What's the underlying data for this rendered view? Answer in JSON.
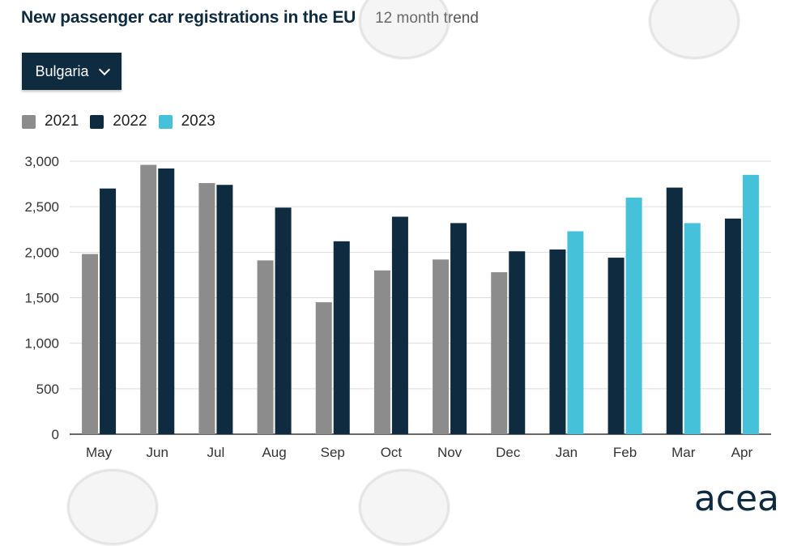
{
  "header": {
    "title": "New passenger car registrations in the EU",
    "subtitle": "12 month trend"
  },
  "selector": {
    "value": "Bulgaria",
    "icon": "chevron-down-icon"
  },
  "logo": "acea",
  "colors": {
    "2021": "#8c8c8c",
    "2022": "#0f2b40",
    "2023": "#45c2da",
    "grid": "#dddddd",
    "axis": "#333333"
  },
  "chart_data": {
    "type": "bar",
    "categories": [
      "May",
      "Jun",
      "Jul",
      "Aug",
      "Sep",
      "Oct",
      "Nov",
      "Dec",
      "Jan",
      "Feb",
      "Mar",
      "Apr"
    ],
    "series": [
      {
        "name": "2021",
        "color": "#8c8c8c",
        "values": [
          1980,
          2960,
          2760,
          1910,
          1450,
          1800,
          1920,
          1780,
          null,
          null,
          null,
          null
        ]
      },
      {
        "name": "2022",
        "color": "#0f2b40",
        "values": [
          2700,
          2920,
          2740,
          2490,
          2120,
          2390,
          2320,
          2010,
          2030,
          1940,
          2710,
          2370
        ]
      },
      {
        "name": "2023",
        "color": "#45c2da",
        "values": [
          null,
          null,
          null,
          null,
          null,
          null,
          null,
          null,
          2230,
          2600,
          2320,
          2850
        ]
      }
    ],
    "yticks": [
      0,
      500,
      1000,
      1500,
      2000,
      2500,
      3000
    ],
    "ytick_labels": [
      "0",
      "500",
      "1,000",
      "1,500",
      "2,000",
      "2,500",
      "3,000"
    ],
    "ylim": [
      0,
      3000
    ],
    "grid": true,
    "legend_position": "top-left"
  }
}
